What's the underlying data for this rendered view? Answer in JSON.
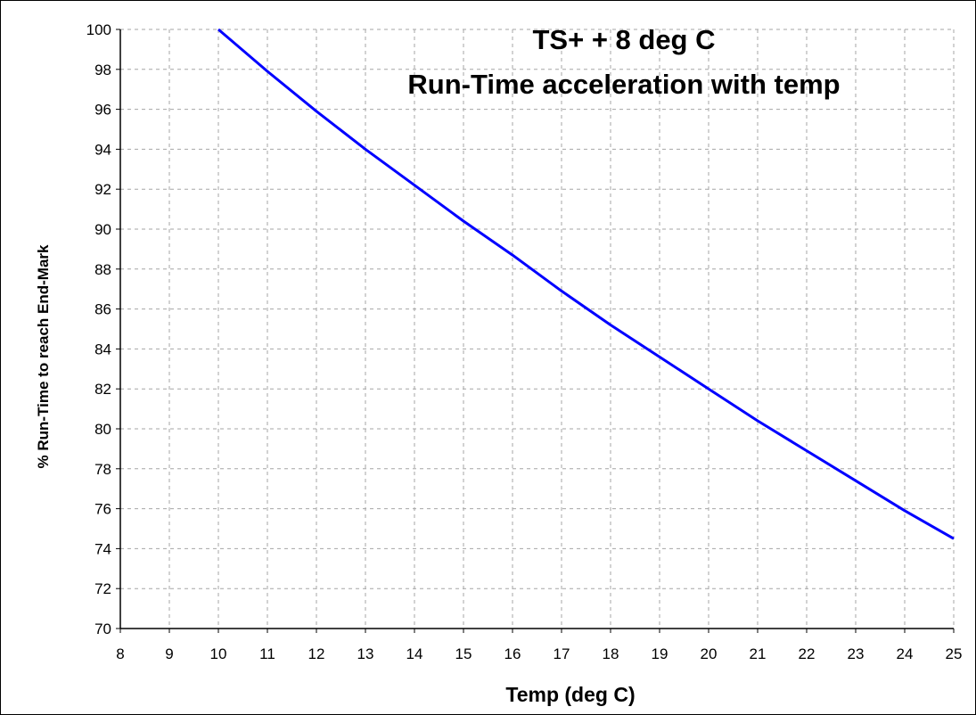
{
  "chart_data": {
    "type": "line",
    "title": "TS+ + 8 deg C",
    "subtitle": "Run-Time acceleration with temp",
    "xlabel": "Temp (deg C)",
    "ylabel": "%  Run-Time to reach End-Mark",
    "xlim": [
      8,
      25
    ],
    "ylim": [
      70,
      100
    ],
    "x_ticks": [
      "8",
      "9",
      "10",
      "11",
      "12",
      "13",
      "14",
      "15",
      "16",
      "17",
      "18",
      "19",
      "20",
      "21",
      "22",
      "23",
      "24",
      "25"
    ],
    "y_ticks": [
      "70",
      "72",
      "74",
      "76",
      "78",
      "80",
      "82",
      "84",
      "86",
      "88",
      "90",
      "92",
      "94",
      "96",
      "98",
      "100"
    ],
    "grid": true,
    "legend": "none",
    "series": [
      {
        "color": "#0000ff",
        "x": [
          10,
          11,
          12,
          13,
          14,
          15,
          16,
          17,
          18,
          19,
          20,
          21,
          22,
          23,
          24,
          25
        ],
        "y": [
          100,
          97.9,
          95.9,
          94.0,
          92.2,
          90.4,
          88.7,
          86.9,
          85.2,
          83.6,
          82.0,
          80.4,
          78.9,
          77.4,
          75.9,
          74.5
        ]
      }
    ]
  }
}
